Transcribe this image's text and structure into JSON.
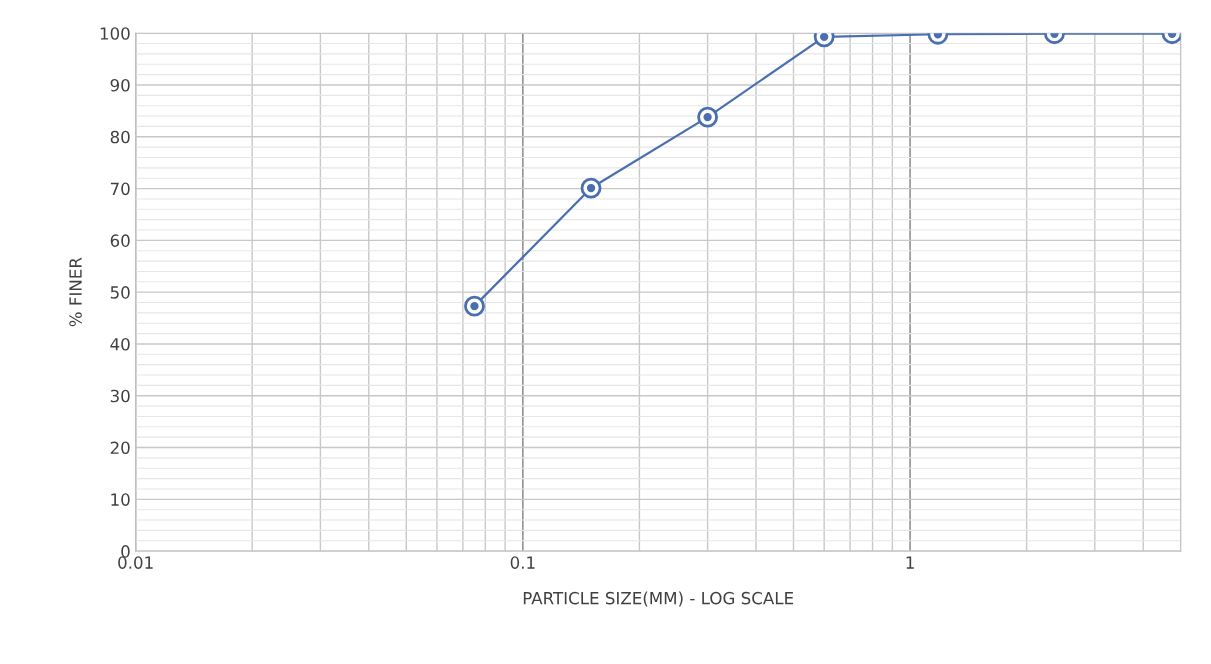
{
  "chart_data": {
    "type": "line",
    "xlabel": "PARTICLE SIZE(MM) - LOG SCALE",
    "ylabel": "% FINER",
    "x": [
      0.075,
      0.15,
      0.3,
      0.6,
      1.18,
      2.36,
      4.75
    ],
    "series": [
      {
        "color": "#4a6fb0",
        "values": [
          47.3,
          70.1,
          83.8,
          99.3,
          99.8,
          99.9,
          99.9
        ]
      }
    ],
    "log": "x",
    "xlim": [
      0.01,
      5
    ],
    "xticks": [
      0.01,
      0.1,
      1
    ],
    "ylim": [
      0,
      100
    ],
    "yticks": [
      0,
      10,
      20,
      30,
      40,
      50,
      60,
      70,
      80,
      90,
      100
    ],
    "grid": true,
    "marker": "circle",
    "line_style": "solid",
    "legend": false
  }
}
